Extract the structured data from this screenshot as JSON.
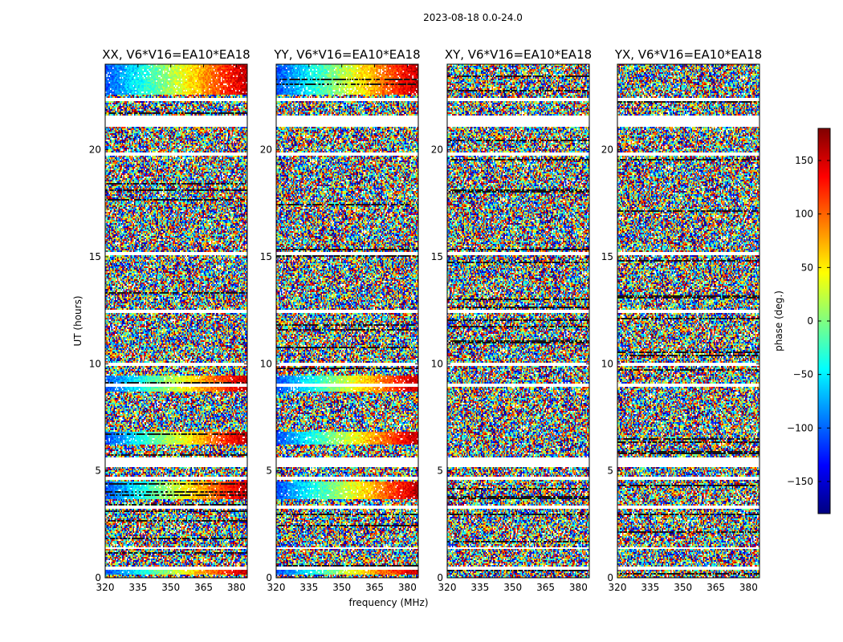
{
  "chart_data": {
    "type": "heatmap",
    "suptitle": "2023-08-18 0.0-24.0",
    "xlabel": "frequency (MHz)",
    "ylabel": "UT (hours)",
    "xlim": [
      320,
      385
    ],
    "ylim": [
      0,
      24
    ],
    "xticks": [
      "320",
      "335",
      "350",
      "365",
      "380"
    ],
    "yticks": [
      "0",
      "5",
      "10",
      "15",
      "20"
    ],
    "colorbar": {
      "label": "phase (deg.)",
      "range": [
        -180,
        180
      ],
      "colormap": "jet",
      "ticks": [
        "150",
        "100",
        "50",
        "0",
        "−50",
        "−100",
        "−150"
      ]
    },
    "panels": [
      {
        "title": "XX, V6*V16=EA10*EA18",
        "pol": "XX",
        "coherent": true
      },
      {
        "title": "YY, V6*V16=EA10*EA18",
        "pol": "YY",
        "coherent": true
      },
      {
        "title": "XY, V6*V16=EA10*EA18",
        "pol": "XY",
        "coherent": false
      },
      {
        "title": "YX, V6*V16=EA10*EA18",
        "pol": "YX",
        "coherent": false
      }
    ],
    "flagged_ut_bands_hours": [
      [
        22.3,
        22.45
      ],
      [
        21.1,
        21.6
      ],
      [
        19.7,
        19.85
      ],
      [
        15.1,
        15.25
      ],
      [
        12.4,
        12.55
      ],
      [
        9.9,
        10.05
      ],
      [
        8.95,
        9.1
      ],
      [
        5.15,
        5.6
      ],
      [
        4.55,
        4.7
      ],
      [
        3.25,
        3.35
      ],
      [
        1.35,
        1.45
      ],
      [
        0.4,
        0.55
      ]
    ],
    "coherent_ut_bands_hours": [
      [
        22.55,
        24.0
      ],
      [
        8.7,
        9.45
      ],
      [
        6.2,
        6.8
      ],
      [
        3.7,
        4.5
      ],
      [
        0.15,
        0.55
      ]
    ]
  }
}
